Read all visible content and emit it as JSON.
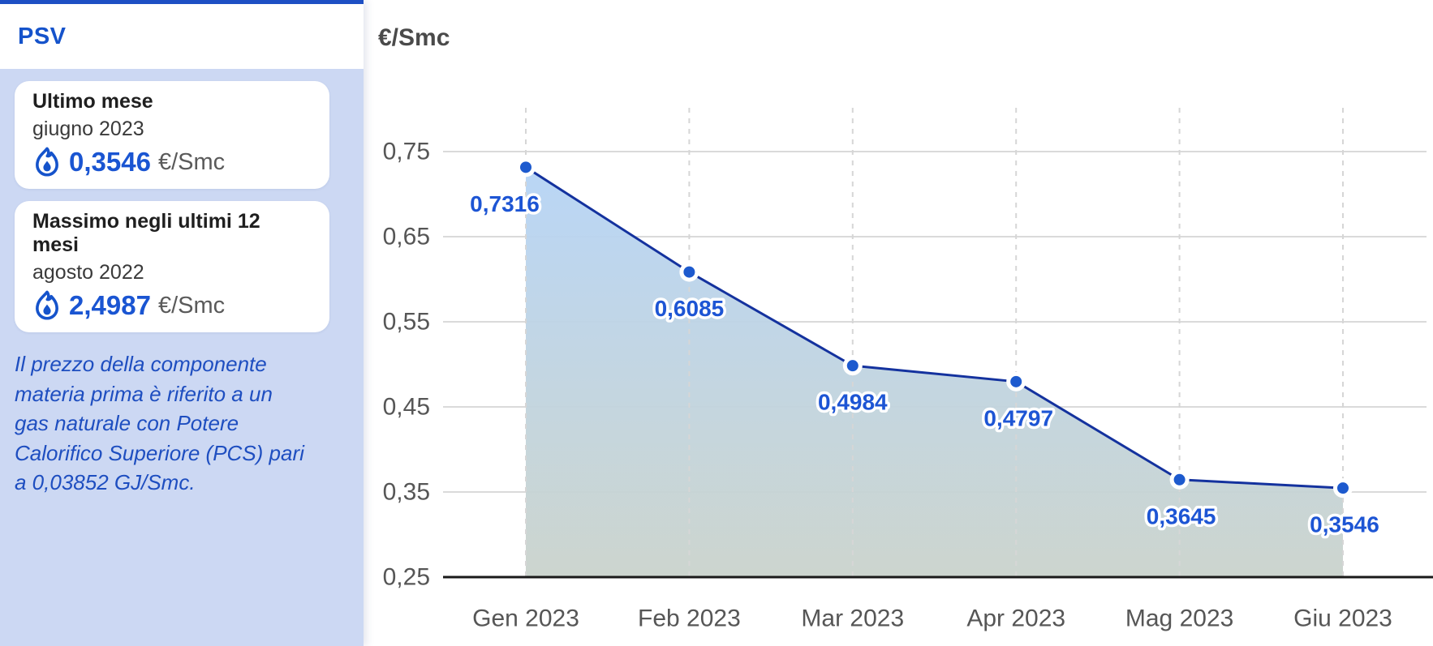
{
  "sidebar": {
    "title": "PSV",
    "cards": [
      {
        "title": "Ultimo mese",
        "subtitle": "giugno 2023",
        "value": "0,3546",
        "unit": "€/Smc",
        "icon": "gas-flame-icon"
      },
      {
        "title": "Massimo negli ultimi 12 mesi",
        "subtitle": "agosto 2022",
        "value": "2,4987",
        "unit": "€/Smc",
        "icon": "gas-flame-icon"
      }
    ],
    "note": "Il prezzo della componente materia prima è riferito a un gas naturale con Potere Calorifico Superiore (PCS) pari a 0,03852 GJ/Smc."
  },
  "chart": {
    "unit_label": "€/Smc"
  },
  "chart_data": {
    "type": "area",
    "title": "",
    "categories": [
      "Gen 2023",
      "Feb 2023",
      "Mar 2023",
      "Apr 2023",
      "Mag 2023",
      "Giu 2023"
    ],
    "values": [
      0.7316,
      0.6085,
      0.4984,
      0.4797,
      0.3645,
      0.3546
    ],
    "point_labels": [
      "0,7316",
      "0,6085",
      "0,4984",
      "0,4797",
      "0,3645",
      "0,3546"
    ],
    "xlabel": "",
    "ylabel": "€/Smc",
    "ylim": [
      0.25,
      0.8
    ],
    "yticks": [
      0.75,
      0.65,
      0.55,
      0.45,
      0.35,
      0.25
    ],
    "ytick_labels": [
      "0,75",
      "0,65",
      "0,55",
      "0,45",
      "0,35",
      "0,25"
    ],
    "grid": "horizontal solid, vertical dashed per category",
    "legend": "none"
  },
  "colors": {
    "accent_blue": "#1553cb",
    "top_border": "#1d4fc4",
    "sidebar_bg": "#ccd8f3",
    "value_blue": "#1a55d2",
    "note_blue": "#1e4ec0",
    "card_title": "#1f1f1f",
    "card_sub": "#3a3a3a",
    "unit_gray": "#5a5a5a",
    "title_gray": "#4a4a4a",
    "line_navy": "#14329e",
    "dot_blue": "#1d5ace",
    "point_label_blue": "#1d55d4",
    "fill_top": "#b5d4f7",
    "fill_bottom": "#cad3cc",
    "grid_gray": "#dadada",
    "dash_gray": "#d6d6d6",
    "axis_black": "#1a1a1a",
    "tick_gray": "#565656"
  }
}
